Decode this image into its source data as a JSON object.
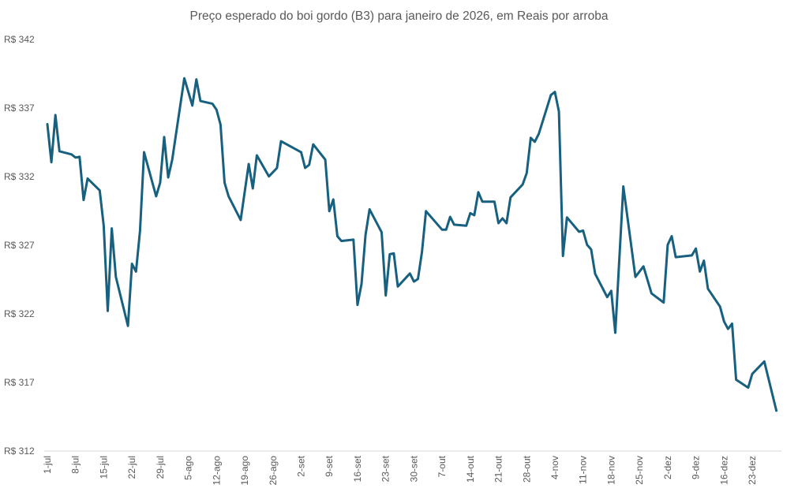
{
  "chart_data": {
    "type": "line",
    "title": "Preço esperado do boi gordo (B3) para janeiro de 2026, em Reais por arroba",
    "xlabel": "",
    "ylabel": "",
    "ylim": [
      312,
      342
    ],
    "y_ticks": [
      312,
      317,
      322,
      327,
      332,
      337,
      342
    ],
    "y_tick_prefix": "R$ ",
    "x_ticks": [
      "1-jul",
      "8-jul",
      "15-jul",
      "22-jul",
      "29-jul",
      "5-ago",
      "12-ago",
      "19-ago",
      "26-ago",
      "2-set",
      "9-set",
      "16-set",
      "23-set",
      "30-set",
      "7-out",
      "14-out",
      "21-out",
      "28-out",
      "4-nov",
      "11-nov",
      "18-nov",
      "25-nov",
      "2-dez",
      "9-dez",
      "16-dez",
      "23-dez"
    ],
    "grid": false,
    "line_color": "#17607f",
    "series": [
      {
        "x": [
          "1-jul",
          "2-jul",
          "3-jul",
          "4-jul",
          "7-jul",
          "8-jul",
          "9-jul",
          "10-jul",
          "11-jul",
          "14-jul",
          "15-jul",
          "16-jul",
          "17-jul",
          "18-jul",
          "21-jul",
          "22-jul",
          "23-jul",
          "24-jul",
          "25-jul",
          "28-jul",
          "29-jul",
          "30-jul",
          "31-jul",
          "1-ago",
          "4-ago",
          "6-ago",
          "7-ago",
          "8-ago",
          "11-ago",
          "12-ago",
          "13-ago",
          "14-ago",
          "15-ago",
          "18-ago",
          "20-ago",
          "21-ago",
          "22-ago",
          "25-ago",
          "27-ago",
          "28-ago",
          "2-set",
          "3-set",
          "4-set",
          "5-set",
          "8-set",
          "9-set",
          "10-set",
          "11-set",
          "12-set",
          "15-set",
          "16-set",
          "17-set",
          "18-set",
          "19-set",
          "22-set",
          "23-set",
          "24-set",
          "25-set",
          "26-set",
          "29-set",
          "30-set",
          "1-out",
          "2-out",
          "3-out",
          "7-out",
          "8-out",
          "9-out",
          "10-out",
          "13-out",
          "14-out",
          "15-out",
          "16-out",
          "17-out",
          "20-out",
          "21-out",
          "22-out",
          "23-out",
          "24-out",
          "27-out",
          "28-out",
          "29-out",
          "30-out",
          "31-out",
          "3-nov",
          "4-nov",
          "5-nov",
          "6-nov",
          "7-nov",
          "10-nov",
          "11-nov",
          "12-nov",
          "13-nov",
          "14-nov",
          "17-nov",
          "18-nov",
          "19-nov",
          "21-nov",
          "24-nov",
          "26-nov",
          "28-nov",
          "1-dez",
          "2-dez",
          "3-dez",
          "4-dez",
          "8-dez",
          "9-dez",
          "10-dez",
          "11-dez",
          "12-dez",
          "15-dez",
          "16-dez",
          "17-dez",
          "18-dez",
          "19-dez",
          "22-dez",
          "23-dez",
          "26-dez",
          "29-dez"
        ],
        "y": [
          335.82,
          333.05,
          336.49,
          333.85,
          333.62,
          333.39,
          333.45,
          330.3,
          331.86,
          331.0,
          328.42,
          322.21,
          328.23,
          324.69,
          321.12,
          325.65,
          325.08,
          328.06,
          333.78,
          330.57,
          331.56,
          334.89,
          331.94,
          333.24,
          339.17,
          337.18,
          339.09,
          337.51,
          337.31,
          336.88,
          335.79,
          331.56,
          330.57,
          328.84,
          332.92,
          331.14,
          333.55,
          332.02,
          332.63,
          334.58,
          333.78,
          332.63,
          332.86,
          334.35,
          333.24,
          329.48,
          330.34,
          327.66,
          327.31,
          327.41,
          322.65,
          324.17,
          327.75,
          329.62,
          327.94,
          323.34,
          326.35,
          326.41,
          323.99,
          324.94,
          324.35,
          324.54,
          326.51,
          329.48,
          328.13,
          328.13,
          329.07,
          328.5,
          328.42,
          329.34,
          329.19,
          330.87,
          330.18,
          330.18,
          328.61,
          328.96,
          328.61,
          330.49,
          331.43,
          332.26,
          334.83,
          334.54,
          335.12,
          337.94,
          338.17,
          336.74,
          326.22,
          329.03,
          327.98,
          328.07,
          327.03,
          326.7,
          324.92,
          323.22,
          323.68,
          320.62,
          331.29,
          324.69,
          325.46,
          323.49,
          322.82,
          327.03,
          327.66,
          326.13,
          326.26,
          326.76,
          325.08,
          325.88,
          323.83,
          322.53,
          321.44,
          320.9,
          321.29,
          317.2,
          316.62,
          317.62,
          318.53,
          314.94
        ]
      }
    ]
  }
}
